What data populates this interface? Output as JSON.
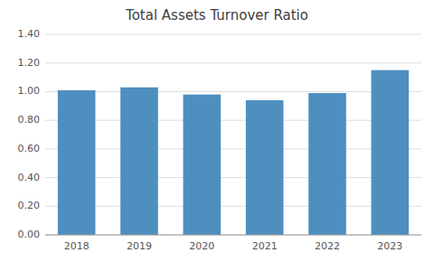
{
  "chart_data": {
    "type": "bar",
    "title": "Total Assets Turnover Ratio",
    "categories": [
      "2018",
      "2019",
      "2020",
      "2021",
      "2022",
      "2023"
    ],
    "values": [
      1.01,
      1.03,
      0.98,
      0.94,
      0.99,
      1.15
    ],
    "color": "#4e8fc0",
    "ylim": [
      0,
      1.4
    ],
    "yticks": [
      {
        "value": 0,
        "label": "0.00"
      },
      {
        "value": 0.2,
        "label": "0.20"
      },
      {
        "value": 0.4,
        "label": "0.40"
      },
      {
        "value": 0.6,
        "label": "0.60"
      },
      {
        "value": 0.8,
        "label": "0.80"
      },
      {
        "value": 1.0,
        "label": "1.00"
      },
      {
        "value": 1.2,
        "label": "1.20"
      },
      {
        "value": 1.4,
        "label": "1.40"
      }
    ],
    "grid": true
  }
}
